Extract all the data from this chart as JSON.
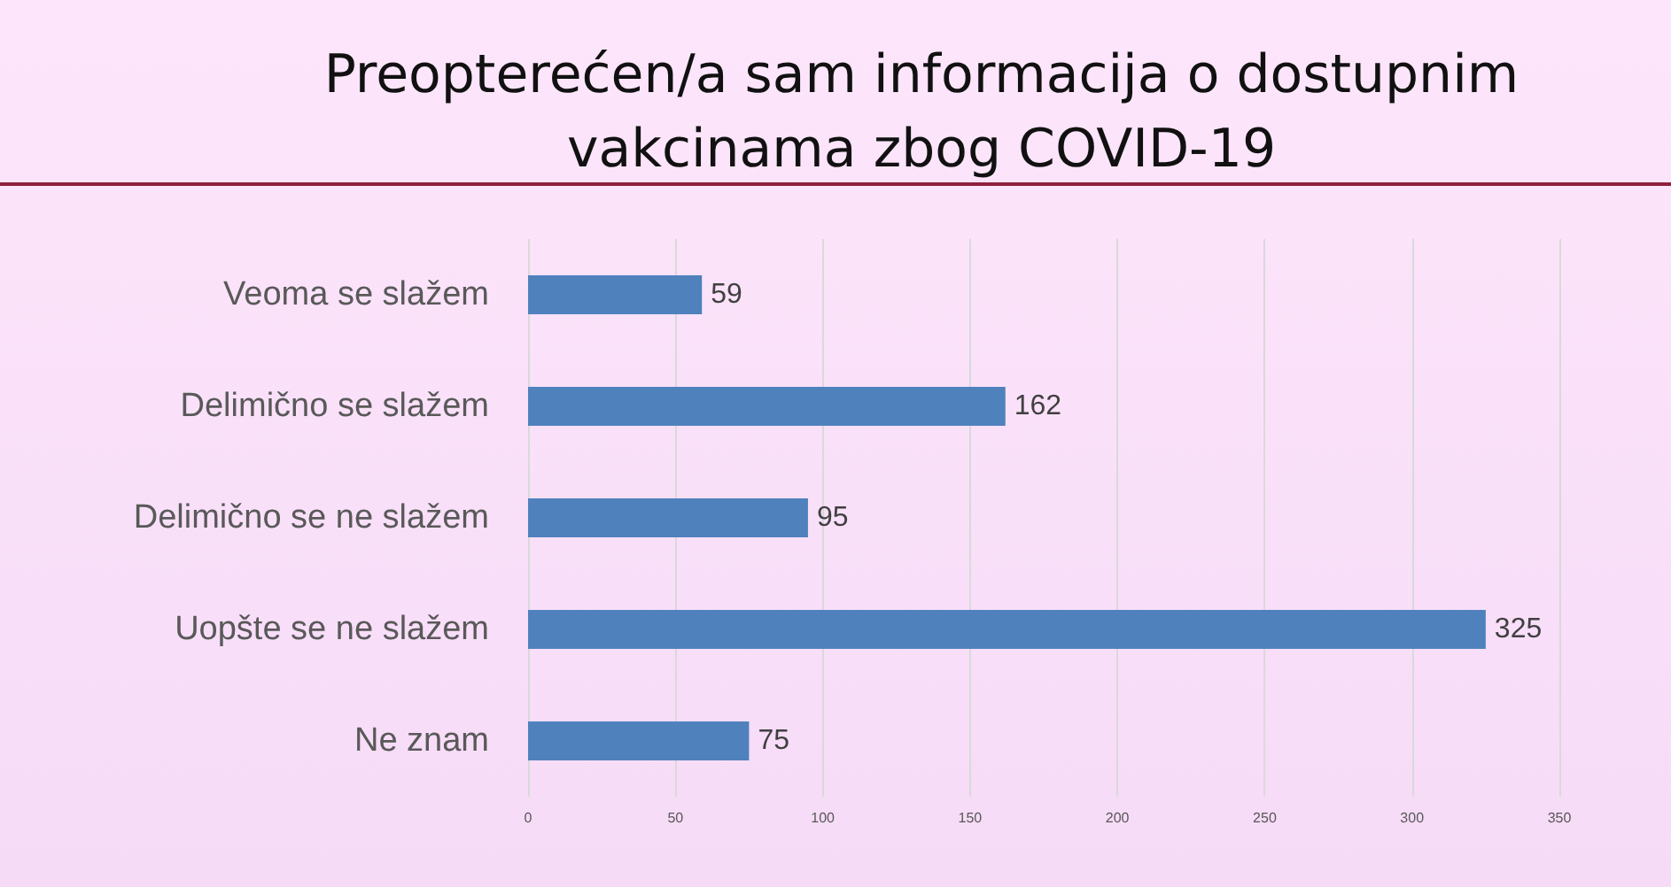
{
  "chart_data": {
    "type": "bar",
    "orientation": "horizontal",
    "title": "Preopterećen/a sam informacija o dostupnim vakcinama zbog COVID-19",
    "categories": [
      "Veoma se slažem",
      "Delimično se slažem",
      "Delimično se ne slažem",
      "Uopšte se ne slažem",
      "Ne znam"
    ],
    "values": [
      59,
      162,
      95,
      325,
      75
    ],
    "color": "#4f81bd",
    "xlim": [
      0,
      350
    ],
    "xticks": [
      0,
      50,
      100,
      150,
      200,
      250,
      300,
      350
    ],
    "grid": "x",
    "data_labels": true
  }
}
